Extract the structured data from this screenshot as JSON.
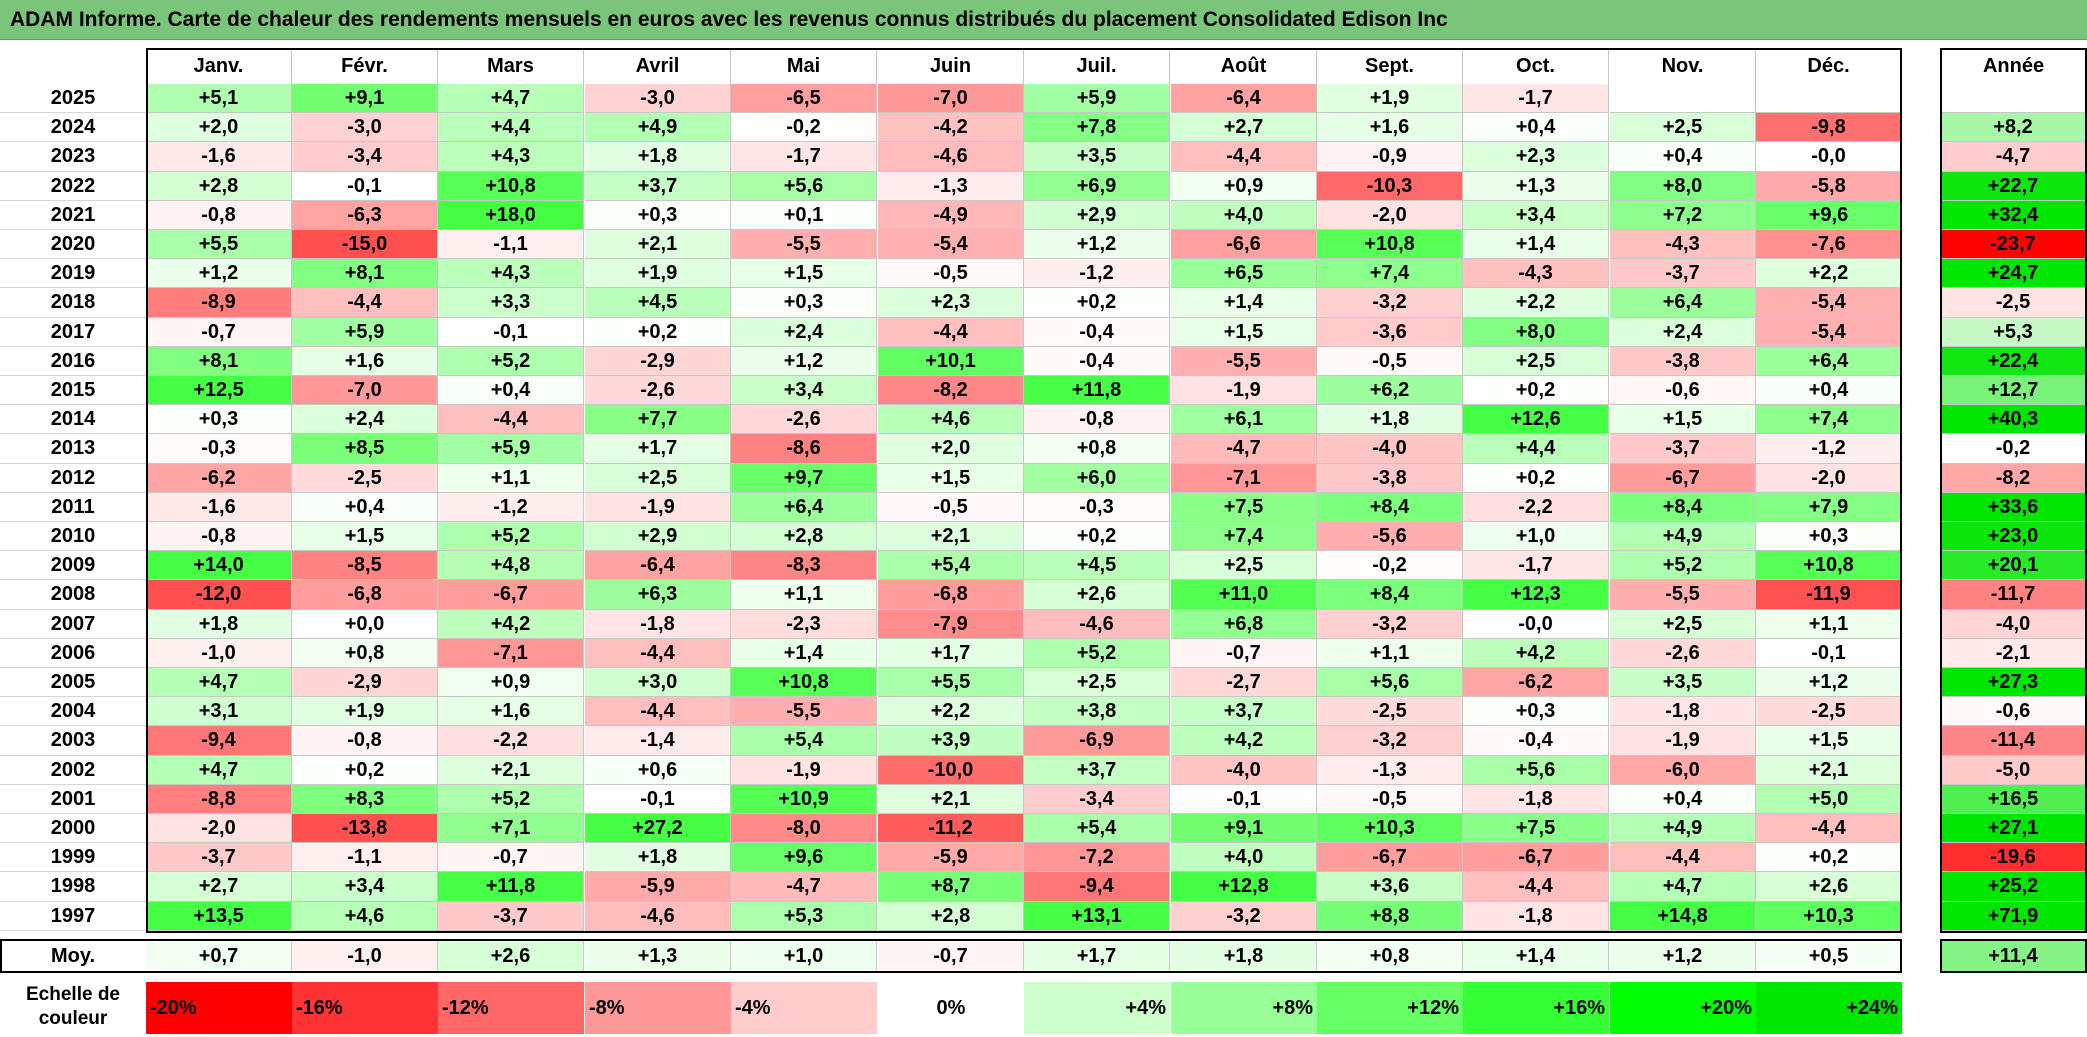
{
  "title": "ADAM Informe. Carte de chaleur des rendements mensuels en euros avec les revenus connus distribués du placement Consolidated Edison Inc",
  "chart_data": {
    "type": "heatmap",
    "columns": [
      "Janv.",
      "Févr.",
      "Mars",
      "Avril",
      "Mai",
      "Juin",
      "Juil.",
      "Août",
      "Sept.",
      "Oct.",
      "Nov.",
      "Déc."
    ],
    "year_column_label": "Année",
    "rows": [
      {
        "label": "2025",
        "values": [
          "+5,1",
          "+9,1",
          "+4,7",
          "-3,0",
          "-6,5",
          "-7,0",
          "+5,9",
          "-6,4",
          "+1,9",
          "-1,7",
          "",
          ""
        ],
        "year": ""
      },
      {
        "label": "2024",
        "values": [
          "+2,0",
          "-3,0",
          "+4,4",
          "+4,9",
          "-0,2",
          "-4,2",
          "+7,8",
          "+2,7",
          "+1,6",
          "+0,4",
          "+2,5",
          "-9,8"
        ],
        "year": "+8,2"
      },
      {
        "label": "2023",
        "values": [
          "-1,6",
          "-3,4",
          "+4,3",
          "+1,8",
          "-1,7",
          "-4,6",
          "+3,5",
          "-4,4",
          "-0,9",
          "+2,3",
          "+0,4",
          "-0,0"
        ],
        "year": "-4,7"
      },
      {
        "label": "2022",
        "values": [
          "+2,8",
          "-0,1",
          "+10,8",
          "+3,7",
          "+5,6",
          "-1,3",
          "+6,9",
          "+0,9",
          "-10,3",
          "+1,3",
          "+8,0",
          "-5,8"
        ],
        "year": "+22,7"
      },
      {
        "label": "2021",
        "values": [
          "-0,8",
          "-6,3",
          "+18,0",
          "+0,3",
          "+0,1",
          "-4,9",
          "+2,9",
          "+4,0",
          "-2,0",
          "+3,4",
          "+7,2",
          "+9,6"
        ],
        "year": "+32,4"
      },
      {
        "label": "2020",
        "values": [
          "+5,5",
          "-15,0",
          "-1,1",
          "+2,1",
          "-5,5",
          "-5,4",
          "+1,2",
          "-6,6",
          "+10,8",
          "+1,4",
          "-4,3",
          "-7,6"
        ],
        "year": "-23,7"
      },
      {
        "label": "2019",
        "values": [
          "+1,2",
          "+8,1",
          "+4,3",
          "+1,9",
          "+1,5",
          "-0,5",
          "-1,2",
          "+6,5",
          "+7,4",
          "-4,3",
          "-3,7",
          "+2,2"
        ],
        "year": "+24,7"
      },
      {
        "label": "2018",
        "values": [
          "-8,9",
          "-4,4",
          "+3,3",
          "+4,5",
          "+0,3",
          "+2,3",
          "+0,2",
          "+1,4",
          "-3,2",
          "+2,2",
          "+6,4",
          "-5,4"
        ],
        "year": "-2,5"
      },
      {
        "label": "2017",
        "values": [
          "-0,7",
          "+5,9",
          "-0,1",
          "+0,2",
          "+2,4",
          "-4,4",
          "-0,4",
          "+1,5",
          "-3,6",
          "+8,0",
          "+2,4",
          "-5,4"
        ],
        "year": "+5,3"
      },
      {
        "label": "2016",
        "values": [
          "+8,1",
          "+1,6",
          "+5,2",
          "-2,9",
          "+1,2",
          "+10,1",
          "-0,4",
          "-5,5",
          "-0,5",
          "+2,5",
          "-3,8",
          "+6,4"
        ],
        "year": "+22,4"
      },
      {
        "label": "2015",
        "values": [
          "+12,5",
          "-7,0",
          "+0,4",
          "-2,6",
          "+3,4",
          "-8,2",
          "+11,8",
          "-1,9",
          "+6,2",
          "+0,2",
          "-0,6",
          "+0,4"
        ],
        "year": "+12,7"
      },
      {
        "label": "2014",
        "values": [
          "+0,3",
          "+2,4",
          "-4,4",
          "+7,7",
          "-2,6",
          "+4,6",
          "-0,8",
          "+6,1",
          "+1,8",
          "+12,6",
          "+1,5",
          "+7,4"
        ],
        "year": "+40,3"
      },
      {
        "label": "2013",
        "values": [
          "-0,3",
          "+8,5",
          "+5,9",
          "+1,7",
          "-8,6",
          "+2,0",
          "+0,8",
          "-4,7",
          "-4,0",
          "+4,4",
          "-3,7",
          "-1,2"
        ],
        "year": "-0,2"
      },
      {
        "label": "2012",
        "values": [
          "-6,2",
          "-2,5",
          "+1,1",
          "+2,5",
          "+9,7",
          "+1,5",
          "+6,0",
          "-7,1",
          "-3,8",
          "+0,2",
          "-6,7",
          "-2,0"
        ],
        "year": "-8,2"
      },
      {
        "label": "2011",
        "values": [
          "-1,6",
          "+0,4",
          "-1,2",
          "-1,9",
          "+6,4",
          "-0,5",
          "-0,3",
          "+7,5",
          "+8,4",
          "-2,2",
          "+8,4",
          "+7,9"
        ],
        "year": "+33,6"
      },
      {
        "label": "2010",
        "values": [
          "-0,8",
          "+1,5",
          "+5,2",
          "+2,9",
          "+2,8",
          "+2,1",
          "+0,2",
          "+7,4",
          "-5,6",
          "+1,0",
          "+4,9",
          "+0,3"
        ],
        "year": "+23,0"
      },
      {
        "label": "2009",
        "values": [
          "+14,0",
          "-8,5",
          "+4,8",
          "-6,4",
          "-8,3",
          "+5,4",
          "+4,5",
          "+2,5",
          "-0,2",
          "-1,7",
          "+5,2",
          "+10,8"
        ],
        "year": "+20,1"
      },
      {
        "label": "2008",
        "values": [
          "-12,0",
          "-6,8",
          "-6,7",
          "+6,3",
          "+1,1",
          "-6,8",
          "+2,6",
          "+11,0",
          "+8,4",
          "+12,3",
          "-5,5",
          "-11,9"
        ],
        "year": "-11,7"
      },
      {
        "label": "2007",
        "values": [
          "+1,8",
          "+0,0",
          "+4,2",
          "-1,8",
          "-2,3",
          "-7,9",
          "-4,6",
          "+6,8",
          "-3,2",
          "-0,0",
          "+2,5",
          "+1,1"
        ],
        "year": "-4,0"
      },
      {
        "label": "2006",
        "values": [
          "-1,0",
          "+0,8",
          "-7,1",
          "-4,4",
          "+1,4",
          "+1,7",
          "+5,2",
          "-0,7",
          "+1,1",
          "+4,2",
          "-2,6",
          "-0,1"
        ],
        "year": "-2,1"
      },
      {
        "label": "2005",
        "values": [
          "+4,7",
          "-2,9",
          "+0,9",
          "+3,0",
          "+10,8",
          "+5,5",
          "+2,5",
          "-2,7",
          "+5,6",
          "-6,2",
          "+3,5",
          "+1,2"
        ],
        "year": "+27,3"
      },
      {
        "label": "2004",
        "values": [
          "+3,1",
          "+1,9",
          "+1,6",
          "-4,4",
          "-5,5",
          "+2,2",
          "+3,8",
          "+3,7",
          "-2,5",
          "+0,3",
          "-1,8",
          "-2,5"
        ],
        "year": "-0,6"
      },
      {
        "label": "2003",
        "values": [
          "-9,4",
          "-0,8",
          "-2,2",
          "-1,4",
          "+5,4",
          "+3,9",
          "-6,9",
          "+4,2",
          "-3,2",
          "-0,4",
          "-1,9",
          "+1,5"
        ],
        "year": "-11,4"
      },
      {
        "label": "2002",
        "values": [
          "+4,7",
          "+0,2",
          "+2,1",
          "+0,6",
          "-1,9",
          "-10,0",
          "+3,7",
          "-4,0",
          "-1,3",
          "+5,6",
          "-6,0",
          "+2,1"
        ],
        "year": "-5,0"
      },
      {
        "label": "2001",
        "values": [
          "-8,8",
          "+8,3",
          "+5,2",
          "-0,1",
          "+10,9",
          "+2,1",
          "-3,4",
          "-0,1",
          "-0,5",
          "-1,8",
          "+0,4",
          "+5,0"
        ],
        "year": "+16,5"
      },
      {
        "label": "2000",
        "values": [
          "-2,0",
          "-13,8",
          "+7,1",
          "+27,2",
          "-8,0",
          "-11,2",
          "+5,4",
          "+9,1",
          "+10,3",
          "+7,5",
          "+4,9",
          "-4,4"
        ],
        "year": "+27,1"
      },
      {
        "label": "1999",
        "values": [
          "-3,7",
          "-1,1",
          "-0,7",
          "+1,8",
          "+9,6",
          "-5,9",
          "-7,2",
          "+4,0",
          "-6,7",
          "-6,7",
          "-4,4",
          "+0,2"
        ],
        "year": "-19,6"
      },
      {
        "label": "1998",
        "values": [
          "+2,7",
          "+3,4",
          "+11,8",
          "-5,9",
          "-4,7",
          "+8,7",
          "-9,4",
          "+12,8",
          "+3,6",
          "-4,4",
          "+4,7",
          "+2,6"
        ],
        "year": "+25,2"
      },
      {
        "label": "1997",
        "values": [
          "+13,5",
          "+4,6",
          "-3,7",
          "-4,6",
          "+5,3",
          "+2,8",
          "+13,1",
          "-3,2",
          "+8,8",
          "-1,8",
          "+14,8",
          "+10,3"
        ],
        "year": "+71,9"
      }
    ],
    "average_row": {
      "label": "Moy.",
      "values": [
        "+0,7",
        "-1,0",
        "+2,6",
        "+1,3",
        "+1,0",
        "-0,7",
        "+1,7",
        "+1,8",
        "+0,8",
        "+1,4",
        "+1,2",
        "+0,5"
      ],
      "year": "+11,4"
    },
    "legend": {
      "title_line1": "Echelle de",
      "title_line2": "couleur",
      "stops": [
        {
          "label": "-20%",
          "color": "#ff0000",
          "align": "left"
        },
        {
          "label": "-16%",
          "color": "#ff3333",
          "align": "left"
        },
        {
          "label": "-12%",
          "color": "#ff6666",
          "align": "left"
        },
        {
          "label": "-8%",
          "color": "#ff9999",
          "align": "left"
        },
        {
          "label": "-4%",
          "color": "#ffcccc",
          "align": "left"
        },
        {
          "label": "0%",
          "color": "#ffffff",
          "align": "center"
        },
        {
          "label": "+4%",
          "color": "#ccffcc",
          "align": "right"
        },
        {
          "label": "+8%",
          "color": "#99ff99",
          "align": "right"
        },
        {
          "label": "+12%",
          "color": "#66ff66",
          "align": "right"
        },
        {
          "label": "+16%",
          "color": "#33ff33",
          "align": "right"
        },
        {
          "label": "+20%",
          "color": "#00ff00",
          "align": "right"
        },
        {
          "label": "+24%",
          "color": "#00e600",
          "align": "right"
        }
      ]
    }
  }
}
